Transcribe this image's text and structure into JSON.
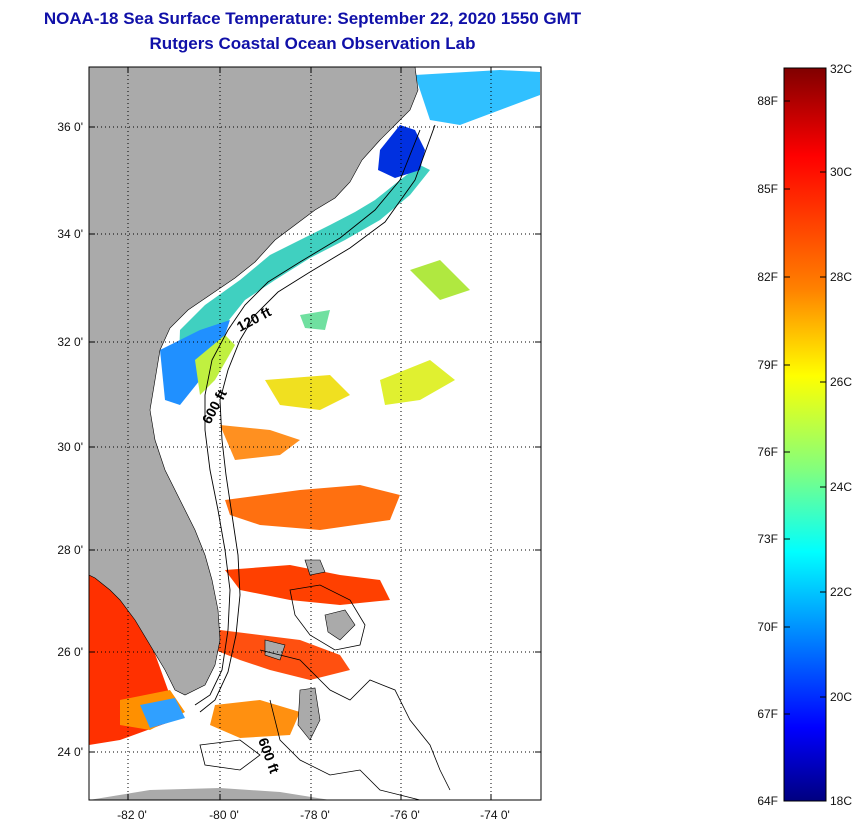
{
  "header": {
    "title_line1": "NOAA-18 Sea Surface Temperature:  September 22, 2020 1550 GMT",
    "title_line2": "Rutgers Coastal Ocean Observation Lab"
  },
  "map": {
    "lat_labels": [
      "36 0'",
      "34 0'",
      "32 0'",
      "30 0'",
      "28 0'",
      "26 0'",
      "24 0'"
    ],
    "lon_labels": [
      "-82 0'",
      "-80 0'",
      "-78 0'",
      "-76 0'",
      "-74 0'"
    ],
    "isobath_labels": [
      "120 ft",
      "600 ft",
      "600 ft"
    ],
    "land_color": "#aaaaaa",
    "cloud_color": "#ffffff"
  },
  "colorbar": {
    "fahrenheit_labels": [
      "88F",
      "85F",
      "82F",
      "79F",
      "76F",
      "73F",
      "70F",
      "67F",
      "64F"
    ],
    "celsius_labels": [
      "32C",
      "30C",
      "28C",
      "26C",
      "24C",
      "22C",
      "20C",
      "18C"
    ],
    "colors": [
      "#800000",
      "#ff0000",
      "#ff8000",
      "#ffff00",
      "#80ff80",
      "#00ffff",
      "#0080ff",
      "#0000ff",
      "#000080"
    ]
  }
}
